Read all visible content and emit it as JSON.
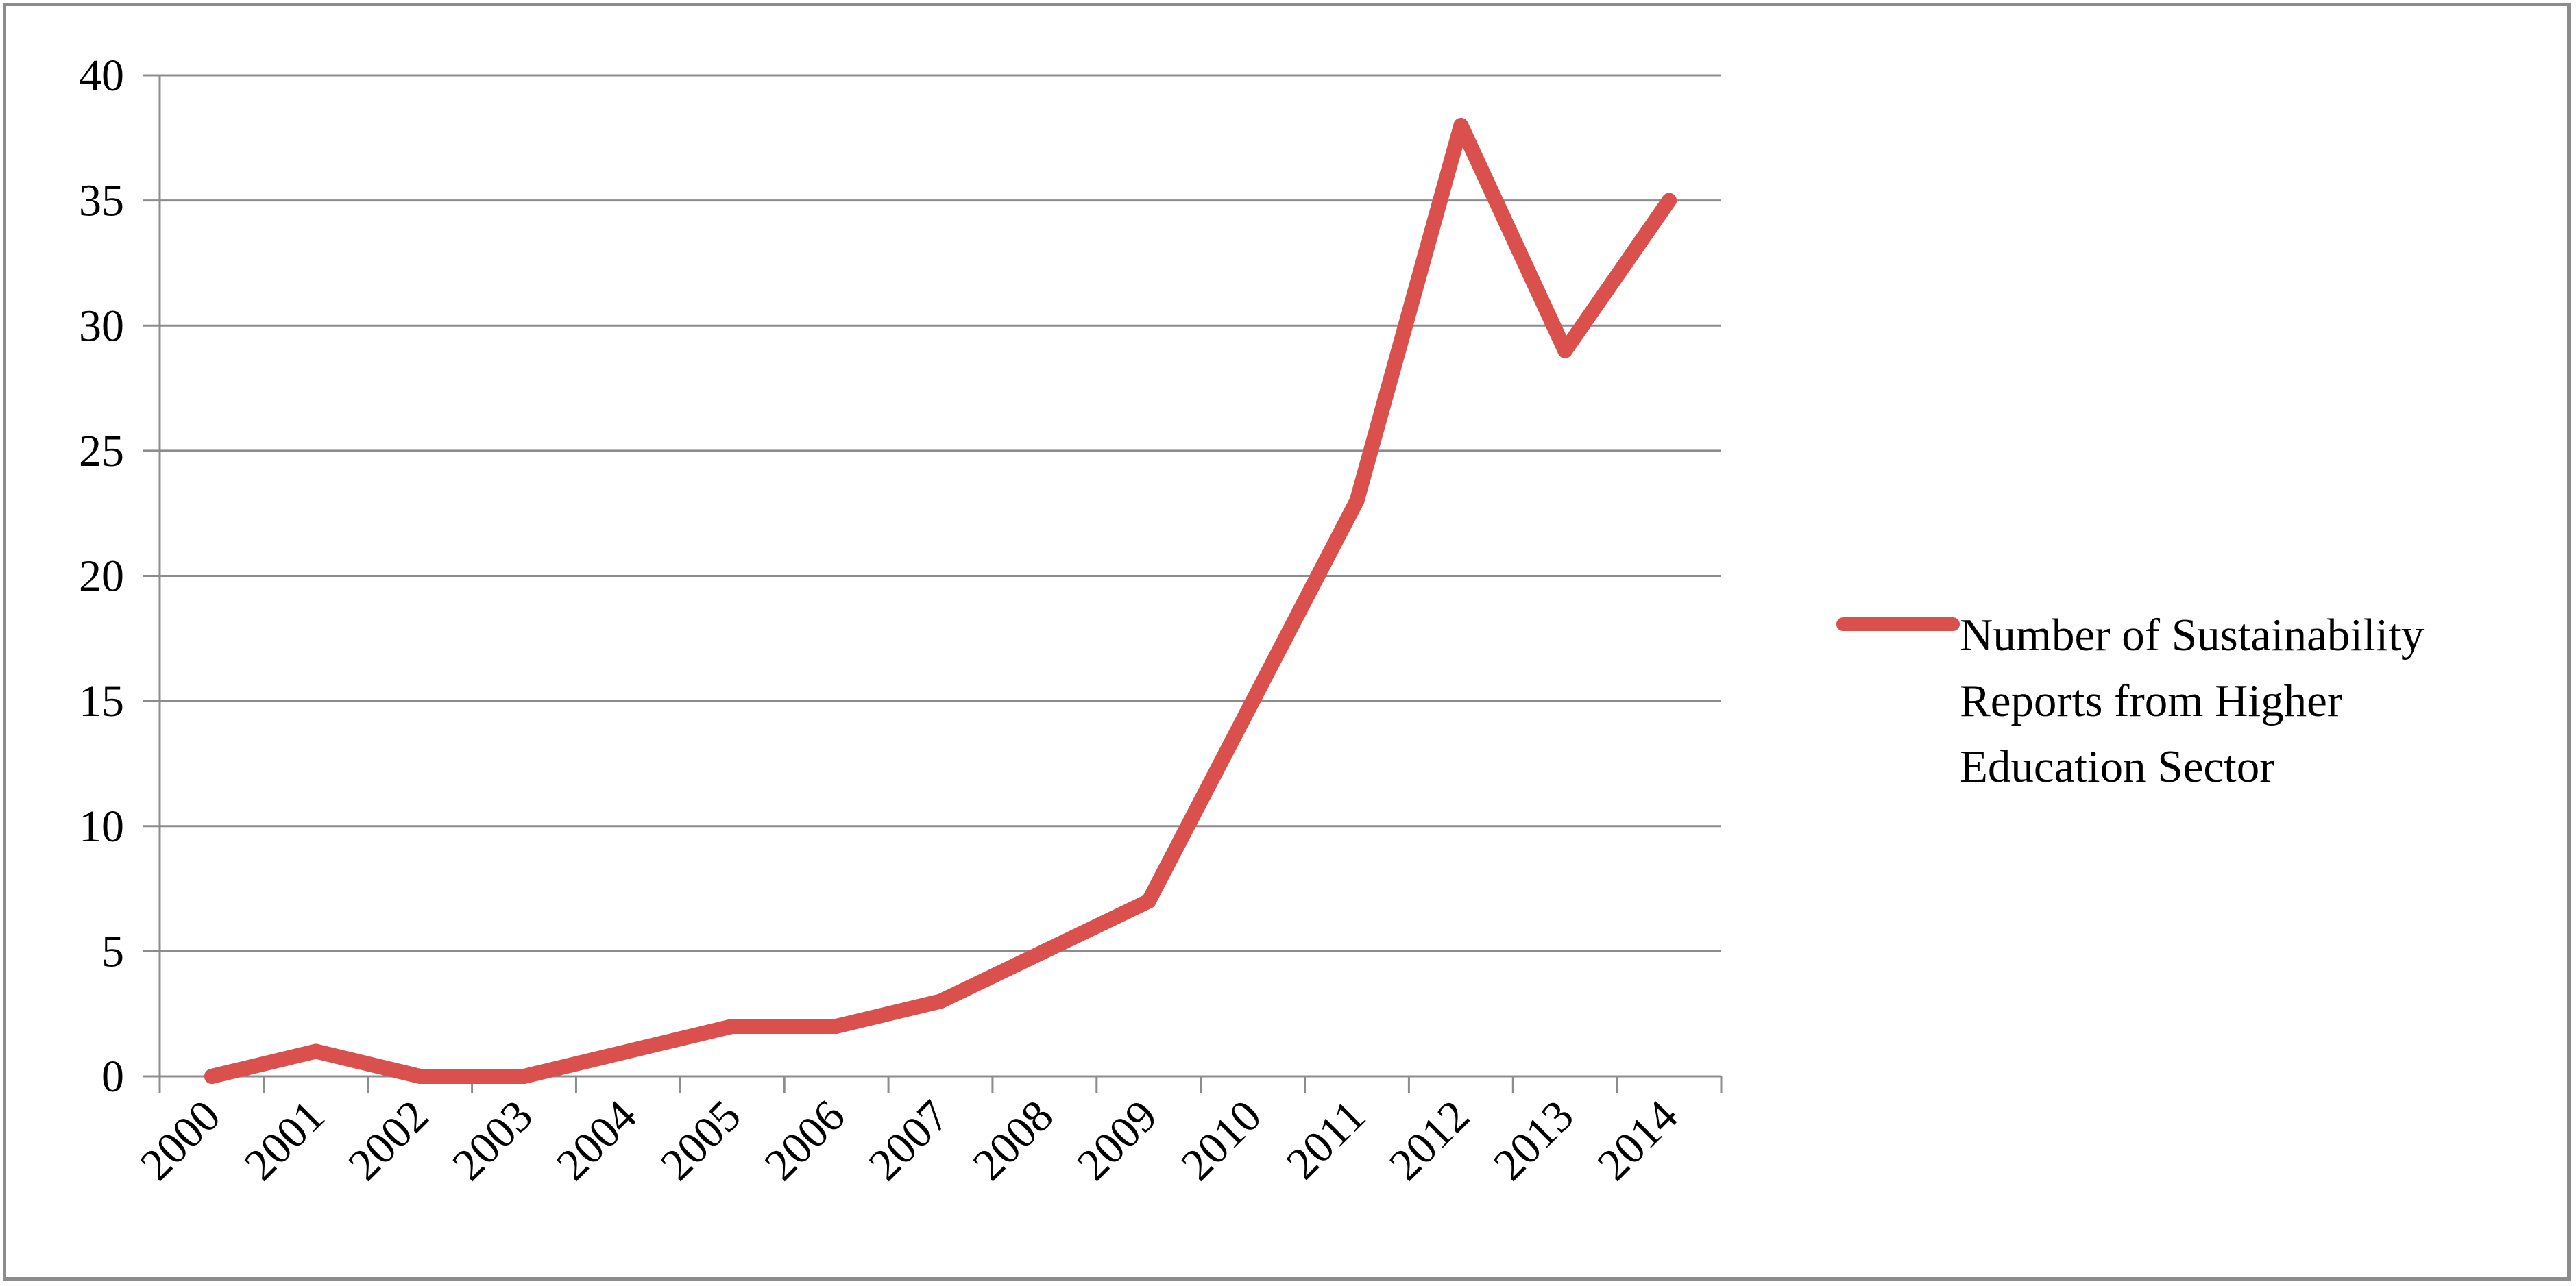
{
  "chart_data": {
    "type": "line",
    "categories": [
      "2000",
      "2001",
      "2002",
      "2003",
      "2004",
      "2005",
      "2006",
      "2007",
      "2008",
      "2009",
      "2010",
      "2011",
      "2012",
      "2013",
      "2014"
    ],
    "series": [
      {
        "name": "Number of Sustainability Reports from Higher Education Sector",
        "values": [
          0,
          1,
          0,
          0,
          1,
          2,
          2,
          3,
          5,
          7,
          15,
          23,
          38,
          29,
          35
        ],
        "color": "#d9504c"
      }
    ],
    "title": "",
    "xlabel": "",
    "ylabel": "",
    "ylim": [
      0,
      40
    ],
    "yticks": [
      "0",
      "5",
      "10",
      "15",
      "20",
      "25",
      "30",
      "35",
      "40"
    ],
    "grid": true,
    "legend_position": "right",
    "gridline_color": "#8c8c8c",
    "border_color": "#8c8c8c"
  }
}
